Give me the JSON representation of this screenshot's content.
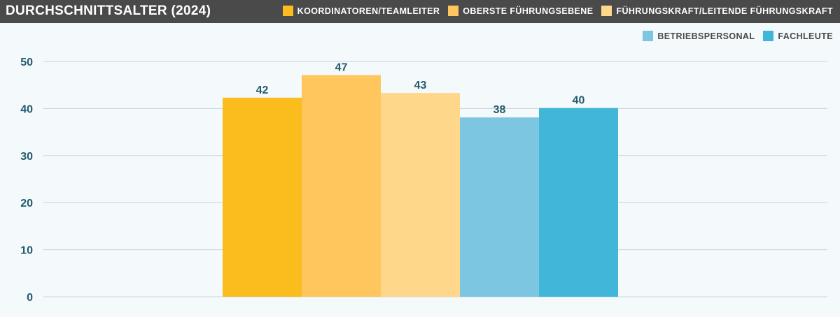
{
  "chart_data": {
    "type": "bar",
    "title": "DURCHSCHNITTSALTER (2024)",
    "xlabel": "",
    "ylabel": "",
    "ylim": [
      0,
      50
    ],
    "yticks": [
      0,
      10,
      20,
      30,
      40,
      50
    ],
    "grid": true,
    "legend_position": "top-right",
    "series": [
      {
        "name": "KOORDINATOREN/TEAMLEITER",
        "value": 42.3,
        "label": "42",
        "color": "#fbbc1e"
      },
      {
        "name": "OBERSTE FÜHRUNGSEBENE",
        "value": 47.1,
        "label": "47",
        "color": "#fec65c"
      },
      {
        "name": "FÜHRUNGSKRAFT/LEITENDE FÜHRUNGSKRAFT",
        "value": 43.3,
        "label": "43",
        "color": "#fed78a"
      },
      {
        "name": "BETRIEBSPERSONAL",
        "value": 38.1,
        "label": "38",
        "color": "#7cc6e1"
      },
      {
        "name": "FACHLEUTE",
        "value": 40.1,
        "label": "40",
        "color": "#42b6d8"
      }
    ]
  }
}
